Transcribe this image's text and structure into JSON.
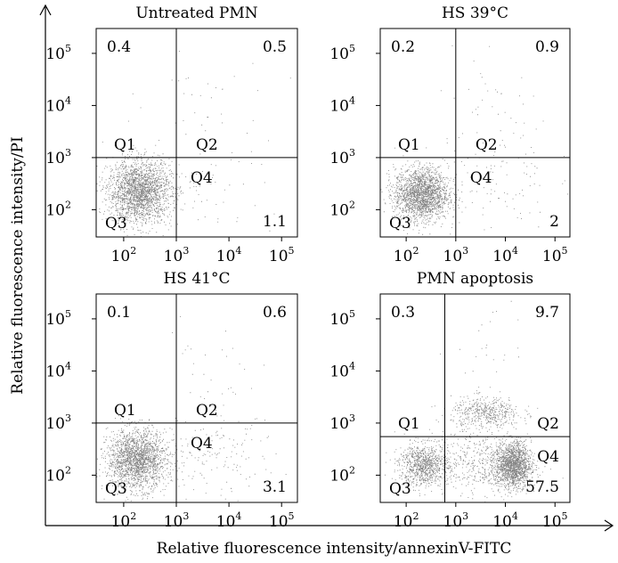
{
  "figure": {
    "y_label": "Relative fluorescence intensity/PI",
    "x_label": "Relative fluorescence intensity/annexinV-FITC"
  },
  "chart_data": [
    {
      "type": "scatter",
      "title": "Untreated PMN",
      "x_scale": "log",
      "y_scale": "log",
      "xlim": [
        30,
        200000
      ],
      "ylim": [
        30,
        300000
      ],
      "x_ticks": [
        {
          "exp": "2",
          "value": 100
        },
        {
          "exp": "3",
          "value": 1000
        },
        {
          "exp": "4",
          "value": 10000
        },
        {
          "exp": "5",
          "value": 100000
        }
      ],
      "y_ticks": [
        {
          "exp": "2",
          "value": 100
        },
        {
          "exp": "3",
          "value": 1000
        },
        {
          "exp": "4",
          "value": 10000
        },
        {
          "exp": "5",
          "value": 100000
        }
      ],
      "gate": {
        "x": 1000,
        "y": 1000
      },
      "quadrants": {
        "Q1": "Q1",
        "Q2": "Q2",
        "Q3": "Q3",
        "Q4": "Q4"
      },
      "percentages": {
        "upper_left": "0.4",
        "upper_right": "0.5",
        "lower_right": "1.1"
      },
      "clusters": [
        {
          "cx": 2.3,
          "cy": 2.35,
          "sx": 0.3,
          "sy": 0.3,
          "n": 2200
        },
        {
          "cx": 3.6,
          "cy": 2.5,
          "sx": 0.6,
          "sy": 0.5,
          "n": 60
        },
        {
          "cx": 3.5,
          "cy": 4.0,
          "sx": 0.6,
          "sy": 0.6,
          "n": 30
        }
      ]
    },
    {
      "type": "scatter",
      "title": "HS 39°C",
      "x_scale": "log",
      "y_scale": "log",
      "xlim": [
        30,
        200000
      ],
      "ylim": [
        30,
        300000
      ],
      "x_ticks": [
        {
          "exp": "2",
          "value": 100
        },
        {
          "exp": "3",
          "value": 1000
        },
        {
          "exp": "4",
          "value": 10000
        },
        {
          "exp": "5",
          "value": 100000
        }
      ],
      "y_ticks": [
        {
          "exp": "2",
          "value": 100
        },
        {
          "exp": "3",
          "value": 1000
        },
        {
          "exp": "4",
          "value": 10000
        },
        {
          "exp": "5",
          "value": 100000
        }
      ],
      "gate": {
        "x": 1000,
        "y": 1000
      },
      "quadrants": {
        "Q1": "Q1",
        "Q2": "Q2",
        "Q3": "Q3",
        "Q4": "Q4"
      },
      "percentages": {
        "upper_left": "0.2",
        "upper_right": "0.9",
        "lower_right": "2"
      },
      "clusters": [
        {
          "cx": 2.3,
          "cy": 2.3,
          "sx": 0.27,
          "sy": 0.25,
          "n": 2000
        },
        {
          "cx": 3.7,
          "cy": 2.6,
          "sx": 0.6,
          "sy": 0.5,
          "n": 100
        },
        {
          "cx": 3.8,
          "cy": 3.9,
          "sx": 0.6,
          "sy": 0.6,
          "n": 45
        }
      ]
    },
    {
      "type": "scatter",
      "title": "HS 41°C",
      "x_scale": "log",
      "y_scale": "log",
      "xlim": [
        30,
        200000
      ],
      "ylim": [
        30,
        300000
      ],
      "x_ticks": [
        {
          "exp": "2",
          "value": 100
        },
        {
          "exp": "3",
          "value": 1000
        },
        {
          "exp": "4",
          "value": 10000
        },
        {
          "exp": "5",
          "value": 100000
        }
      ],
      "y_ticks": [
        {
          "exp": "2",
          "value": 100
        },
        {
          "exp": "3",
          "value": 1000
        },
        {
          "exp": "4",
          "value": 10000
        },
        {
          "exp": "5",
          "value": 100000
        }
      ],
      "gate": {
        "x": 1000,
        "y": 1000
      },
      "quadrants": {
        "Q1": "Q1",
        "Q2": "Q2",
        "Q3": "Q3",
        "Q4": "Q4"
      },
      "percentages": {
        "upper_left": "0.1",
        "upper_right": "0.6",
        "lower_right": "3.1"
      },
      "clusters": [
        {
          "cx": 2.25,
          "cy": 2.3,
          "sx": 0.28,
          "sy": 0.28,
          "n": 2000
        },
        {
          "cx": 3.7,
          "cy": 2.35,
          "sx": 0.6,
          "sy": 0.4,
          "n": 160
        },
        {
          "cx": 3.6,
          "cy": 4.0,
          "sx": 0.5,
          "sy": 0.6,
          "n": 30
        }
      ]
    },
    {
      "type": "scatter",
      "title": "PMN apoptosis",
      "x_scale": "log",
      "y_scale": "log",
      "xlim": [
        30,
        200000
      ],
      "ylim": [
        30,
        300000
      ],
      "x_ticks": [
        {
          "exp": "2",
          "value": 100
        },
        {
          "exp": "3",
          "value": 1000
        },
        {
          "exp": "4",
          "value": 10000
        },
        {
          "exp": "5",
          "value": 100000
        }
      ],
      "y_ticks": [
        {
          "exp": "2",
          "value": 100
        },
        {
          "exp": "3",
          "value": 1000
        },
        {
          "exp": "4",
          "value": 10000
        },
        {
          "exp": "5",
          "value": 100000
        }
      ],
      "gate": {
        "x": 600,
        "y": 550
      },
      "quadrants": {
        "Q1": "Q1",
        "Q2": "Q2",
        "Q3": "Q3",
        "Q4": "Q4"
      },
      "percentages": {
        "upper_left": "0.3",
        "upper_right": "9.7",
        "lower_right": "57.5"
      },
      "clusters": [
        {
          "cx": 2.35,
          "cy": 2.2,
          "sx": 0.25,
          "sy": 0.2,
          "n": 900
        },
        {
          "cx": 4.15,
          "cy": 2.2,
          "sx": 0.18,
          "sy": 0.22,
          "n": 1500
        },
        {
          "cx": 3.5,
          "cy": 2.25,
          "sx": 0.5,
          "sy": 0.3,
          "n": 500
        },
        {
          "cx": 3.6,
          "cy": 3.2,
          "sx": 0.35,
          "sy": 0.15,
          "n": 500
        },
        {
          "cx": 3.8,
          "cy": 4.4,
          "sx": 0.4,
          "sy": 0.4,
          "n": 25
        }
      ]
    }
  ]
}
